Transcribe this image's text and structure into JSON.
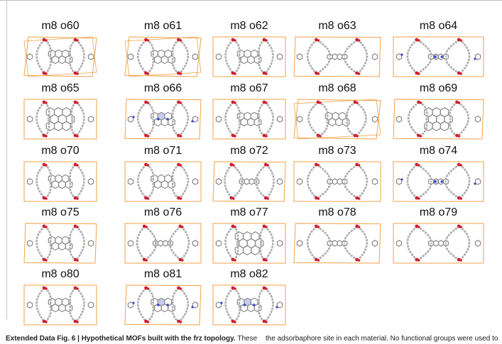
{
  "figure": {
    "panels": [
      {
        "label": "m8 o60",
        "variant": "angled"
      },
      {
        "label": "m8 o61",
        "variant": "angled"
      },
      {
        "label": "m8 o62",
        "variant": "tall"
      },
      {
        "label": "m8 o63",
        "variant": "wide"
      },
      {
        "label": "m8 o64",
        "variant": "wide-n"
      },
      {
        "label": "m8 o65",
        "variant": "big"
      },
      {
        "label": "m8 o66",
        "variant": "n"
      },
      {
        "label": "m8 o67",
        "variant": "tall"
      },
      {
        "label": "m8 o68",
        "variant": "angled"
      },
      {
        "label": "m8 o69",
        "variant": "big"
      },
      {
        "label": "m8 o70",
        "variant": "tall"
      },
      {
        "label": "m8 o71",
        "variant": "tall"
      },
      {
        "label": "m8 o72",
        "variant": "wide"
      },
      {
        "label": "m8 o73",
        "variant": "wide"
      },
      {
        "label": "m8 o74",
        "variant": "wide-n"
      },
      {
        "label": "m8 o75",
        "variant": "tall"
      },
      {
        "label": "m8 o76",
        "variant": "wide"
      },
      {
        "label": "m8 o77",
        "variant": "big"
      },
      {
        "label": "m8 o78",
        "variant": "wide"
      },
      {
        "label": "m8 o79",
        "variant": "wide"
      },
      {
        "label": "m8 o80",
        "variant": "tall"
      },
      {
        "label": "m8 o81",
        "variant": "n"
      },
      {
        "label": "m8 o82",
        "variant": "n"
      }
    ],
    "colors": {
      "cell_edge": "#f0a24a",
      "carbon": "#8a8a8a",
      "oxygen": "#d02030",
      "nitrogen": "#3848c8",
      "hydrogen": "#d8d8d8"
    }
  },
  "caption": {
    "heading": "Extended Data Fig. 6 | Hypothetical MOFs built with the frz topology.",
    "lead": "These",
    "right_text": "the adsorbaphore site in each material. No functional groups were used to"
  }
}
